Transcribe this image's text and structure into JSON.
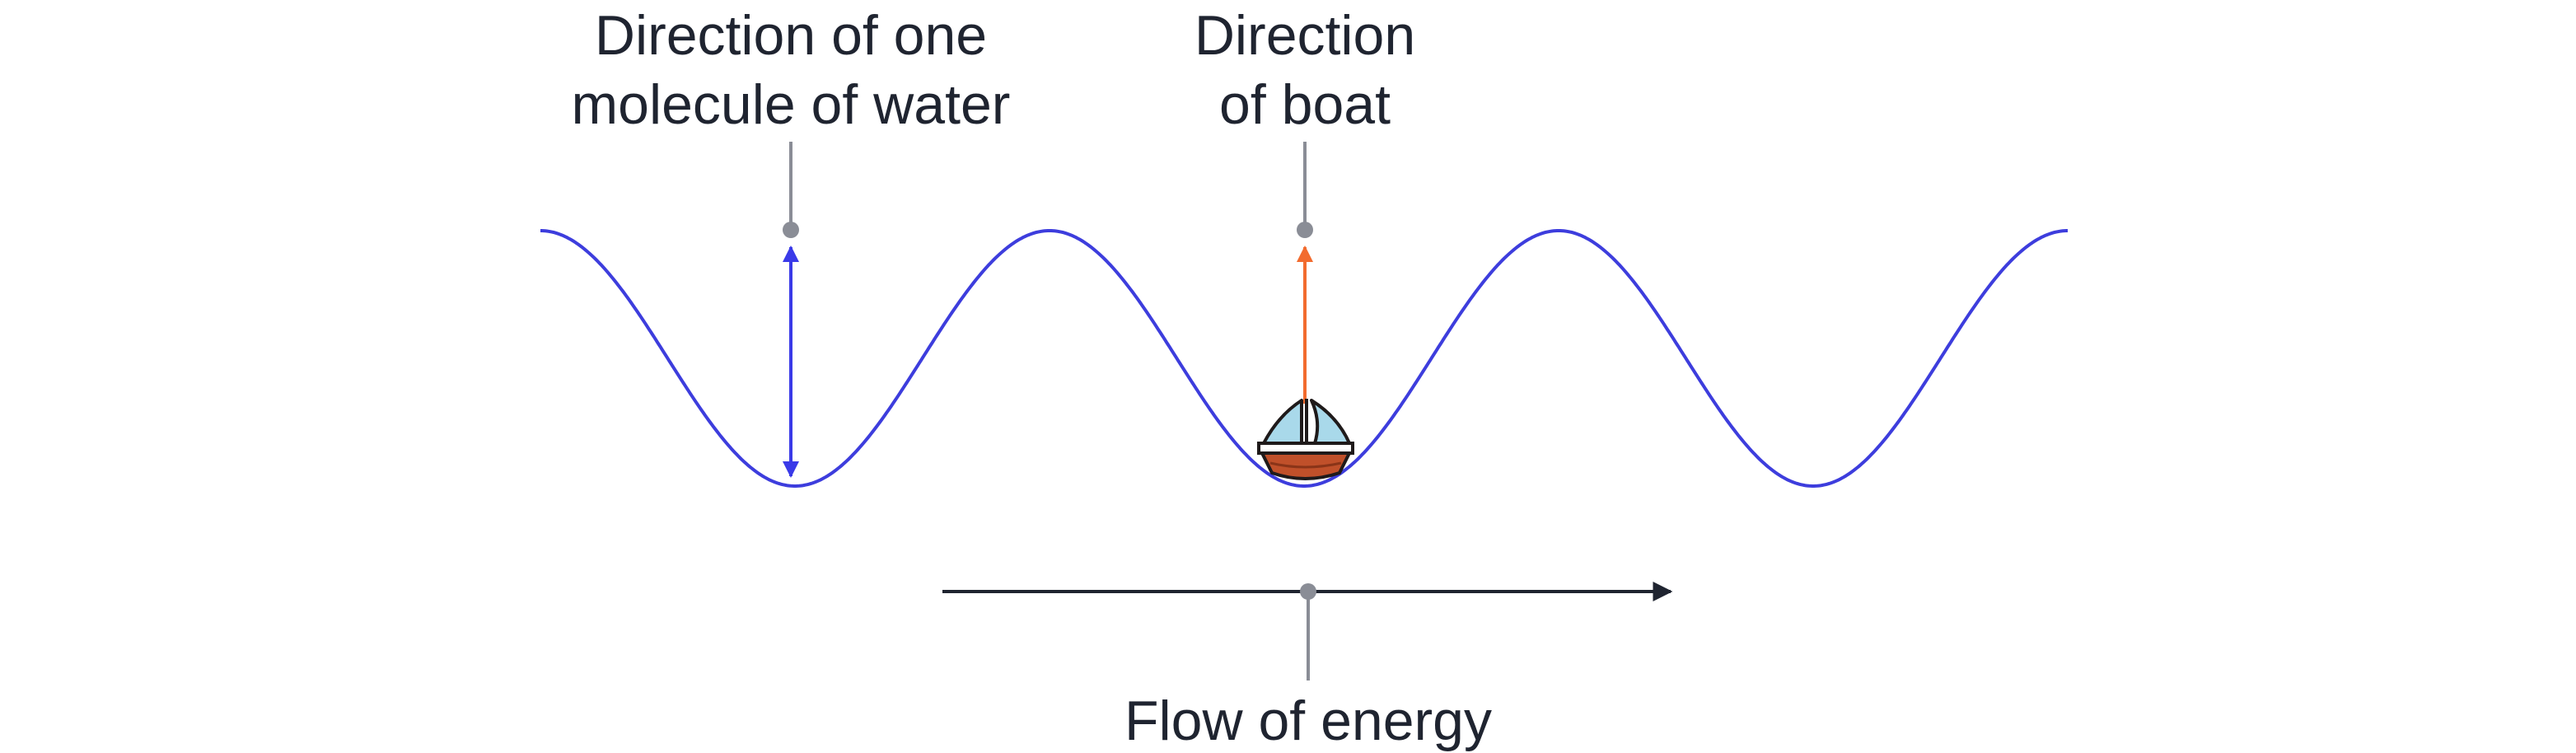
{
  "labels": {
    "water_line1": "Direction of one",
    "water_line2": "molecule of water",
    "boat_line1": "Direction",
    "boat_line2": "of boat",
    "energy": "Flow of energy"
  },
  "icons": {
    "boat": "sailboat-icon"
  },
  "colors": {
    "wave": "#3d3ddd",
    "water_arrow": "#3a3ae8",
    "boat_arrow": "#f26b2e",
    "energy_arrow": "#1f2430",
    "callout": "#8a8d96",
    "text": "#1f2430"
  }
}
